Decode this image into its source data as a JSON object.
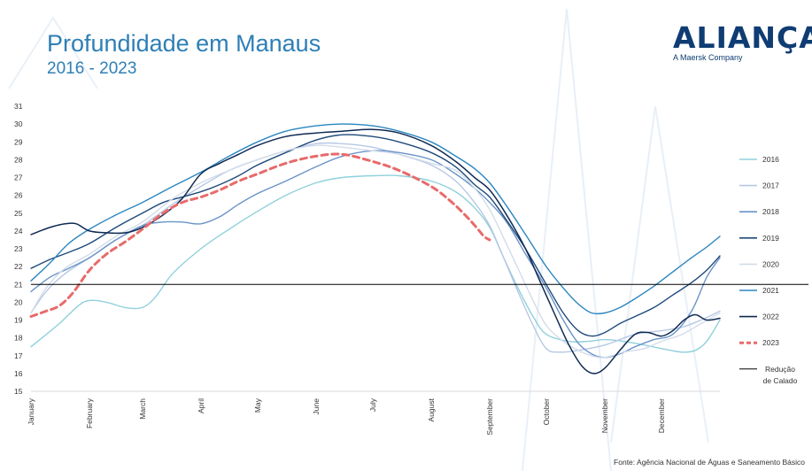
{
  "header": {
    "title": "Profundidade em Manaus",
    "subtitle": "2016 - 2023"
  },
  "logo": {
    "word": "ALIANÇA",
    "tagline": "A Maersk Company"
  },
  "source": "Fonte: Agência Nacional de Águas e Saneamento Básico",
  "colors": {
    "title": "#2e7fb6",
    "logo": "#0f3c73",
    "reference_line": "#000000"
  },
  "chart_data": {
    "type": "line",
    "title": "Profundidade em Manaus",
    "subtitle": "2016 - 2023",
    "ylim": [
      15,
      31
    ],
    "yticks": [
      15,
      16,
      17,
      18,
      19,
      20,
      21,
      22,
      23,
      24,
      25,
      26,
      27,
      28,
      29,
      30,
      31
    ],
    "xlim": [
      0,
      365
    ],
    "months": [
      {
        "label": "January",
        "day": 0
      },
      {
        "label": "February",
        "day": 31
      },
      {
        "label": "March",
        "day": 59
      },
      {
        "label": "April",
        "day": 90
      },
      {
        "label": "May",
        "day": 120
      },
      {
        "label": "June",
        "day": 151
      },
      {
        "label": "July",
        "day": 181
      },
      {
        "label": "August",
        "day": 212
      },
      {
        "label": "September",
        "day": 243
      },
      {
        "label": "October",
        "day": 273
      },
      {
        "label": "November",
        "day": 304
      },
      {
        "label": "December",
        "day": 334
      }
    ],
    "grid": false,
    "legend_position": "right",
    "reference_line": {
      "name": "Redução de Calado",
      "label_lines": [
        "Redução",
        "de Calado"
      ],
      "value": 21,
      "color": "#000000"
    },
    "series": [
      {
        "name": "2016",
        "color": "#8fd0dc",
        "width": 1.4,
        "dash": false,
        "points": [
          [
            0,
            17.5
          ],
          [
            15,
            18.8
          ],
          [
            25,
            19.8
          ],
          [
            31,
            20.1
          ],
          [
            40,
            20.0
          ],
          [
            50,
            19.7
          ],
          [
            59,
            19.7
          ],
          [
            66,
            20.3
          ],
          [
            75,
            21.6
          ],
          [
            90,
            23.0
          ],
          [
            105,
            24.1
          ],
          [
            120,
            25.1
          ],
          [
            135,
            26.0
          ],
          [
            151,
            26.7
          ],
          [
            165,
            27.0
          ],
          [
            181,
            27.1
          ],
          [
            195,
            27.1
          ],
          [
            212,
            26.8
          ],
          [
            225,
            26.2
          ],
          [
            235,
            25.3
          ],
          [
            243,
            24.2
          ],
          [
            250,
            22.6
          ],
          [
            258,
            20.8
          ],
          [
            266,
            19.2
          ],
          [
            273,
            18.2
          ],
          [
            285,
            17.8
          ],
          [
            295,
            17.8
          ],
          [
            304,
            17.9
          ],
          [
            314,
            17.8
          ],
          [
            325,
            17.6
          ],
          [
            334,
            17.4
          ],
          [
            345,
            17.2
          ],
          [
            352,
            17.3
          ],
          [
            358,
            17.8
          ],
          [
            365,
            19.0
          ]
        ]
      },
      {
        "name": "2017",
        "color": "#b7c8e4",
        "width": 1.4,
        "dash": false,
        "points": [
          [
            0,
            19.4
          ],
          [
            8,
            20.6
          ],
          [
            18,
            21.6
          ],
          [
            31,
            22.5
          ],
          [
            45,
            23.5
          ],
          [
            59,
            24.3
          ],
          [
            75,
            25.5
          ],
          [
            90,
            26.5
          ],
          [
            105,
            27.4
          ],
          [
            120,
            28.0
          ],
          [
            135,
            28.5
          ],
          [
            151,
            28.9
          ],
          [
            165,
            28.9
          ],
          [
            181,
            28.7
          ],
          [
            195,
            28.3
          ],
          [
            212,
            27.7
          ],
          [
            225,
            26.8
          ],
          [
            235,
            25.6
          ],
          [
            243,
            24.3
          ],
          [
            250,
            22.6
          ],
          [
            258,
            20.6
          ],
          [
            266,
            18.7
          ],
          [
            273,
            17.4
          ],
          [
            280,
            17.2
          ],
          [
            290,
            17.3
          ],
          [
            304,
            17.6
          ],
          [
            320,
            18.2
          ],
          [
            334,
            18.4
          ],
          [
            345,
            18.6
          ],
          [
            355,
            19.0
          ],
          [
            365,
            19.5
          ]
        ]
      },
      {
        "name": "2018",
        "color": "#6a93c8",
        "width": 1.4,
        "dash": false,
        "points": [
          [
            0,
            20.6
          ],
          [
            10,
            21.4
          ],
          [
            20,
            21.9
          ],
          [
            31,
            22.5
          ],
          [
            45,
            23.5
          ],
          [
            59,
            24.3
          ],
          [
            70,
            24.5
          ],
          [
            80,
            24.5
          ],
          [
            90,
            24.4
          ],
          [
            100,
            24.8
          ],
          [
            110,
            25.5
          ],
          [
            120,
            26.1
          ],
          [
            135,
            26.8
          ],
          [
            151,
            27.6
          ],
          [
            165,
            28.2
          ],
          [
            181,
            28.5
          ],
          [
            195,
            28.4
          ],
          [
            212,
            28.0
          ],
          [
            225,
            27.2
          ],
          [
            235,
            26.4
          ],
          [
            243,
            25.6
          ],
          [
            252,
            24.5
          ],
          [
            262,
            22.7
          ],
          [
            273,
            20.8
          ],
          [
            282,
            19.0
          ],
          [
            290,
            17.7
          ],
          [
            297,
            17.1
          ],
          [
            304,
            16.9
          ],
          [
            312,
            17.1
          ],
          [
            320,
            17.5
          ],
          [
            330,
            17.9
          ],
          [
            340,
            18.2
          ],
          [
            350,
            19.5
          ],
          [
            358,
            21.4
          ],
          [
            365,
            22.5
          ]
        ]
      },
      {
        "name": "2019",
        "color": "#1f4a7a",
        "width": 1.4,
        "dash": false,
        "points": [
          [
            0,
            21.9
          ],
          [
            10,
            22.4
          ],
          [
            20,
            22.8
          ],
          [
            31,
            23.3
          ],
          [
            45,
            24.2
          ],
          [
            59,
            25.0
          ],
          [
            70,
            25.6
          ],
          [
            80,
            25.9
          ],
          [
            90,
            26.2
          ],
          [
            100,
            26.6
          ],
          [
            110,
            27.1
          ],
          [
            120,
            27.7
          ],
          [
            135,
            28.4
          ],
          [
            151,
            29.1
          ],
          [
            165,
            29.4
          ],
          [
            181,
            29.3
          ],
          [
            195,
            29.0
          ],
          [
            212,
            28.4
          ],
          [
            225,
            27.6
          ],
          [
            235,
            26.6
          ],
          [
            243,
            25.9
          ],
          [
            252,
            24.6
          ],
          [
            262,
            23.0
          ],
          [
            273,
            21.0
          ],
          [
            282,
            19.4
          ],
          [
            290,
            18.4
          ],
          [
            297,
            18.1
          ],
          [
            304,
            18.3
          ],
          [
            312,
            18.8
          ],
          [
            320,
            19.2
          ],
          [
            330,
            19.7
          ],
          [
            340,
            20.4
          ],
          [
            350,
            21.1
          ],
          [
            358,
            21.8
          ],
          [
            365,
            22.6
          ]
        ]
      },
      {
        "name": "2020",
        "color": "#d2dcea",
        "width": 1.4,
        "dash": false,
        "points": [
          [
            0,
            19.4
          ],
          [
            8,
            20.8
          ],
          [
            18,
            21.9
          ],
          [
            31,
            22.7
          ],
          [
            45,
            23.7
          ],
          [
            59,
            24.5
          ],
          [
            75,
            25.8
          ],
          [
            90,
            26.7
          ],
          [
            105,
            27.4
          ],
          [
            120,
            28.0
          ],
          [
            135,
            28.5
          ],
          [
            151,
            28.8
          ],
          [
            165,
            28.7
          ],
          [
            181,
            28.5
          ],
          [
            195,
            28.3
          ],
          [
            212,
            27.8
          ],
          [
            225,
            27.4
          ],
          [
            235,
            26.4
          ],
          [
            243,
            25.2
          ],
          [
            250,
            23.7
          ],
          [
            258,
            21.9
          ],
          [
            266,
            20.1
          ],
          [
            273,
            18.7
          ],
          [
            282,
            17.8
          ],
          [
            290,
            17.3
          ],
          [
            297,
            17.0
          ],
          [
            304,
            16.9
          ],
          [
            314,
            17.2
          ],
          [
            325,
            17.4
          ],
          [
            334,
            17.8
          ],
          [
            345,
            18.2
          ],
          [
            355,
            18.8
          ],
          [
            365,
            19.4
          ]
        ]
      },
      {
        "name": "2021",
        "color": "#2b86bf",
        "width": 1.4,
        "dash": false,
        "points": [
          [
            0,
            21.2
          ],
          [
            10,
            22.2
          ],
          [
            20,
            23.3
          ],
          [
            31,
            24.1
          ],
          [
            45,
            24.9
          ],
          [
            59,
            25.6
          ],
          [
            75,
            26.5
          ],
          [
            90,
            27.3
          ],
          [
            105,
            28.2
          ],
          [
            120,
            29.0
          ],
          [
            135,
            29.6
          ],
          [
            151,
            29.9
          ],
          [
            165,
            30.0
          ],
          [
            181,
            29.9
          ],
          [
            195,
            29.6
          ],
          [
            212,
            29.0
          ],
          [
            225,
            28.2
          ],
          [
            235,
            27.5
          ],
          [
            243,
            26.7
          ],
          [
            252,
            25.4
          ],
          [
            262,
            23.8
          ],
          [
            273,
            22.0
          ],
          [
            282,
            20.8
          ],
          [
            290,
            19.9
          ],
          [
            297,
            19.4
          ],
          [
            304,
            19.4
          ],
          [
            312,
            19.7
          ],
          [
            320,
            20.2
          ],
          [
            330,
            20.9
          ],
          [
            340,
            21.7
          ],
          [
            350,
            22.5
          ],
          [
            358,
            23.1
          ],
          [
            365,
            23.7
          ]
        ]
      },
      {
        "name": "2022",
        "color": "#0f2a52",
        "width": 1.5,
        "dash": false,
        "points": [
          [
            0,
            23.8
          ],
          [
            10,
            24.2
          ],
          [
            18,
            24.4
          ],
          [
            24,
            24.4
          ],
          [
            31,
            24.0
          ],
          [
            40,
            23.9
          ],
          [
            50,
            23.9
          ],
          [
            59,
            24.2
          ],
          [
            70,
            24.9
          ],
          [
            80,
            25.8
          ],
          [
            90,
            27.2
          ],
          [
            100,
            27.8
          ],
          [
            110,
            28.3
          ],
          [
            120,
            28.8
          ],
          [
            135,
            29.3
          ],
          [
            151,
            29.5
          ],
          [
            165,
            29.6
          ],
          [
            181,
            29.7
          ],
          [
            195,
            29.5
          ],
          [
            212,
            28.8
          ],
          [
            225,
            27.9
          ],
          [
            235,
            27.0
          ],
          [
            243,
            26.3
          ],
          [
            252,
            24.9
          ],
          [
            262,
            23.0
          ],
          [
            270,
            21.1
          ],
          [
            278,
            19.2
          ],
          [
            285,
            17.6
          ],
          [
            292,
            16.4
          ],
          [
            298,
            16.0
          ],
          [
            304,
            16.3
          ],
          [
            312,
            17.3
          ],
          [
            320,
            18.2
          ],
          [
            327,
            18.3
          ],
          [
            334,
            18.1
          ],
          [
            340,
            18.4
          ],
          [
            346,
            19.0
          ],
          [
            352,
            19.3
          ],
          [
            358,
            19.0
          ],
          [
            365,
            19.1
          ]
        ]
      },
      {
        "name": "2023",
        "color": "#e86a6a",
        "width": 3,
        "dash": true,
        "points": [
          [
            0,
            19.2
          ],
          [
            8,
            19.5
          ],
          [
            15,
            19.8
          ],
          [
            22,
            20.5
          ],
          [
            31,
            21.8
          ],
          [
            40,
            22.7
          ],
          [
            50,
            23.4
          ],
          [
            59,
            24.1
          ],
          [
            70,
            25.0
          ],
          [
            80,
            25.6
          ],
          [
            90,
            25.9
          ],
          [
            100,
            26.3
          ],
          [
            110,
            26.8
          ],
          [
            120,
            27.2
          ],
          [
            135,
            27.8
          ],
          [
            151,
            28.2
          ],
          [
            165,
            28.3
          ],
          [
            181,
            27.9
          ],
          [
            195,
            27.4
          ],
          [
            212,
            26.5
          ],
          [
            222,
            25.7
          ],
          [
            230,
            24.9
          ],
          [
            236,
            24.2
          ],
          [
            240,
            23.7
          ],
          [
            243,
            23.5
          ]
        ]
      }
    ]
  }
}
